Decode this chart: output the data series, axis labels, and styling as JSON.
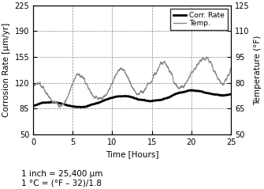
{
  "xlim": [
    0,
    25
  ],
  "ylim_left": [
    50,
    225
  ],
  "ylim_right": [
    50,
    125
  ],
  "yticks_left": [
    50,
    85,
    120,
    155,
    190,
    225
  ],
  "yticks_right": [
    50,
    65,
    80,
    95,
    110,
    125
  ],
  "xticks": [
    0,
    5,
    10,
    15,
    20,
    25
  ],
  "xlabel": "Time [Hours]",
  "ylabel_left": "Corrosion Rate [μm/yr]",
  "ylabel_right": "Temperature (°F)",
  "legend_labels": [
    "Corr. Rate",
    "Temp."
  ],
  "corr_color": "#000000",
  "temp_color": "#888888",
  "right_axis_color": "#000000",
  "annotation": "1 inch = 25,400 μm\n1 °C = (°F – 32)/1.8",
  "fig_width": 3.35,
  "fig_height": 2.39,
  "dpi": 100
}
